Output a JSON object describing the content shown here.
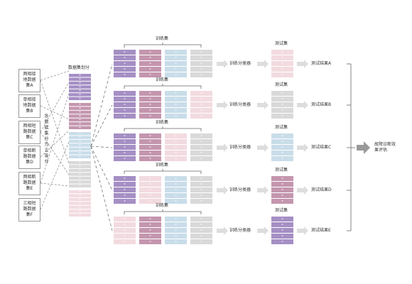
{
  "datasets": [
    "两相接地数据集A",
    "单相接地数据集B",
    "两相短路数据集C",
    "单相断路数据集D",
    "两相断路数据集E",
    "三相短路数据集F"
  ],
  "split_label": "数据集划分",
  "vertical_note": "各数据集分为五等分",
  "folds": [
    {
      "train_label": "训练集",
      "classifier": "训练分类器",
      "test_label": "测试集",
      "result": "测试结果A"
    },
    {
      "train_label": "训练集",
      "classifier": "训练分类器",
      "test_label": "测试集",
      "result": "测试结果B"
    },
    {
      "train_label": "训练集",
      "classifier": "训练分类器",
      "test_label": "测试集",
      "result": "测试结果C"
    },
    {
      "train_label": "训练集",
      "classifier": "训练分类器",
      "test_label": "测试集",
      "result": "测试结果D"
    },
    {
      "train_label": "训练集",
      "classifier": "训练分类器",
      "test_label": "测试集",
      "result": "测试结果E"
    }
  ],
  "evaluation": "故障诊断效果评估"
}
